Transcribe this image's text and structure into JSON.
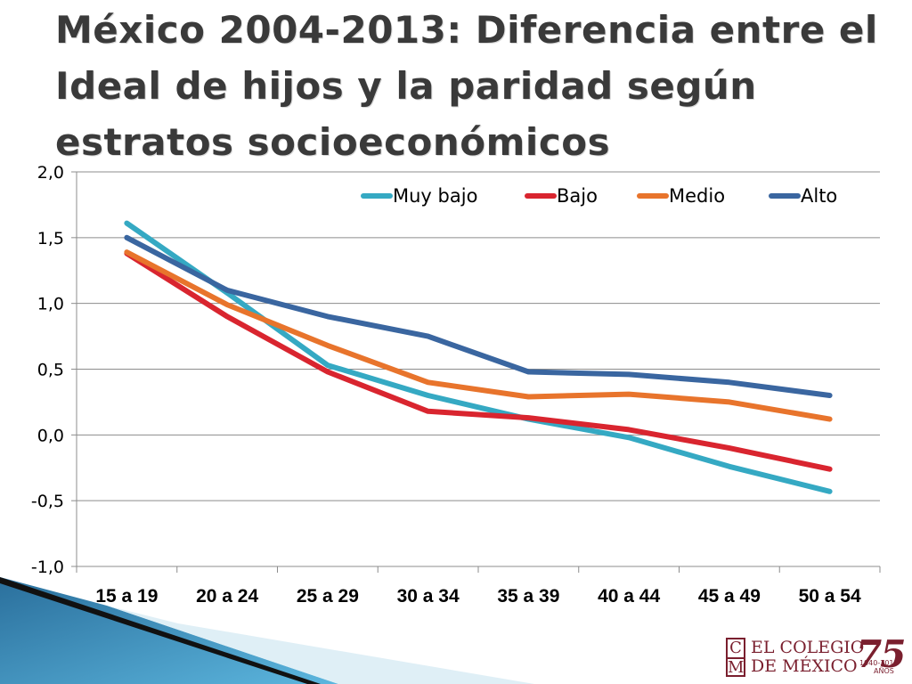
{
  "slide": {
    "title": "México 2004-2013: Diferencia entre el Ideal de hijos y la paridad según estratos socioeconómicos"
  },
  "logo": {
    "letters": [
      "C",
      "M"
    ],
    "line1": "EL COLEGIO",
    "line2": "DE MÉXICO",
    "anniversary": "75",
    "years": "1940-2015",
    "anos": "AÑOS",
    "color": "#7a1f2e"
  },
  "chart_data": {
    "type": "line",
    "title": "",
    "xlabel": "",
    "ylabel": "",
    "categories": [
      "15 a 19",
      "20 a 24",
      "25 a 29",
      "30 a 34",
      "35 a 39",
      "40 a 44",
      "45 a 49",
      "50 a 54"
    ],
    "ylim": [
      -1.0,
      2.0
    ],
    "yticks": [
      2.0,
      1.5,
      1.0,
      0.5,
      0.0,
      -0.5,
      -1.0
    ],
    "ytick_labels": [
      "2,0",
      "1,5",
      "1,0",
      "0,5",
      "0,0",
      "-0,5",
      "-1,0"
    ],
    "grid": true,
    "legend_position": "top-right",
    "series": [
      {
        "name": "Muy bajo",
        "color": "#35a9c3",
        "values": [
          1.61,
          1.08,
          0.53,
          0.3,
          0.12,
          -0.02,
          -0.24,
          -0.43
        ]
      },
      {
        "name": "Bajo",
        "color": "#d9252f",
        "values": [
          1.38,
          0.9,
          0.48,
          0.18,
          0.13,
          0.04,
          -0.1,
          -0.26
        ]
      },
      {
        "name": "Medio",
        "color": "#e8742c",
        "values": [
          1.39,
          0.99,
          0.68,
          0.4,
          0.29,
          0.31,
          0.25,
          0.12
        ]
      },
      {
        "name": "Alto",
        "color": "#3a66a0",
        "values": [
          1.5,
          1.1,
          0.9,
          0.75,
          0.48,
          0.46,
          0.4,
          0.3
        ]
      }
    ]
  }
}
